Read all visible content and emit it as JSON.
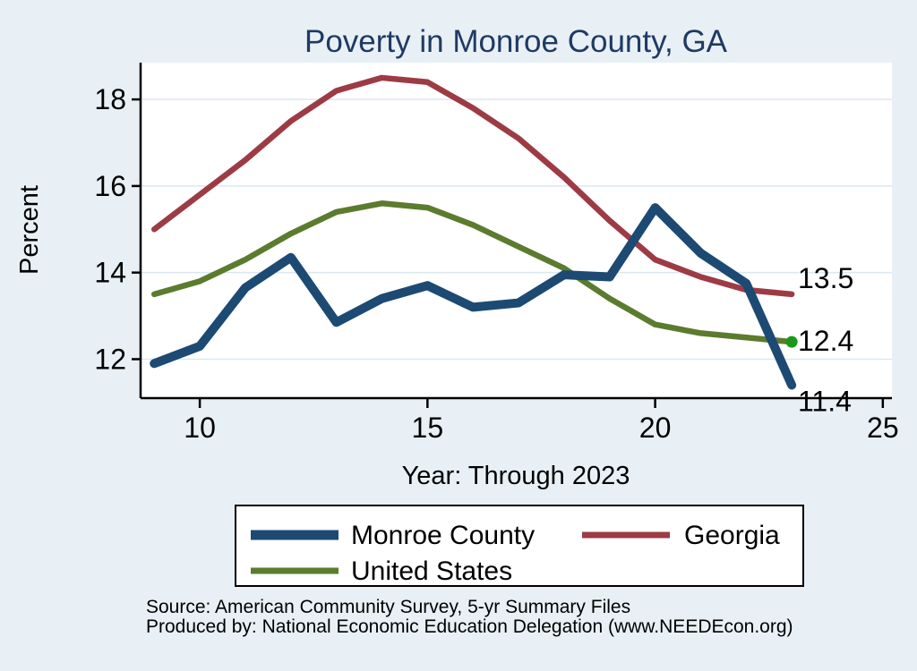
{
  "title": "Poverty in Monroe County, GA",
  "colors": {
    "background": "#e8f0f5",
    "plot_background": "#ffffff",
    "gridline": "#dbe8f1",
    "axis": "#000000",
    "title_text": "#1f3a63",
    "monroe_blue": "#1c4a73",
    "georgia_maroon": "#9d3b44",
    "us_olive": "#5b7c2e",
    "end_marker_green": "#189a18"
  },
  "y_axis": {
    "label": "Percent",
    "ticks": [
      12,
      14,
      16,
      18
    ]
  },
  "x_axis": {
    "label": "Year: Through 2023",
    "ticks": [
      10,
      15,
      20,
      25
    ]
  },
  "legend": {
    "items": [
      {
        "label": "Monroe County",
        "color": "#1c4a73"
      },
      {
        "label": "Georgia",
        "color": "#9d3b44"
      },
      {
        "label": "United States",
        "color": "#5b7c2e"
      }
    ]
  },
  "footer": {
    "source": "Source: American Community Survey, 5-yr Summary Files",
    "produced_by": "Produced by: National Economic Education Delegation (www.NEEDEcon.org)"
  },
  "chart_data": {
    "type": "line",
    "title": "Poverty in Monroe County, GA",
    "xlabel": "Year: Through 2023",
    "ylabel": "Percent",
    "x": [
      9,
      10,
      11,
      12,
      13,
      14,
      15,
      16,
      17,
      18,
      19,
      20,
      21,
      22,
      23
    ],
    "xlim": [
      8.7,
      25.2
    ],
    "ylim": [
      11.1,
      18.85
    ],
    "grid": "horizontal",
    "legend_position": "bottom",
    "series": [
      {
        "key": "georgia",
        "name": "Georgia",
        "color": "#9d3b44",
        "line_width": 6.5,
        "values": [
          15.0,
          15.8,
          16.6,
          17.5,
          18.2,
          18.5,
          18.4,
          17.8,
          17.1,
          16.2,
          15.2,
          14.3,
          13.9,
          13.6,
          13.5
        ],
        "end_label": "13.5",
        "end_marker": false
      },
      {
        "key": "united-states",
        "name": "United States",
        "color": "#5b7c2e",
        "line_width": 6.5,
        "values": [
          13.5,
          13.8,
          14.3,
          14.9,
          15.4,
          15.6,
          15.5,
          15.1,
          14.6,
          14.1,
          13.4,
          12.8,
          12.6,
          12.5,
          12.4
        ],
        "end_label": "12.4",
        "end_marker": true,
        "end_marker_color": "#189a18"
      },
      {
        "key": "monroe-county",
        "name": "Monroe County",
        "color": "#1c4a73",
        "line_width": 10,
        "values": [
          11.9,
          12.3,
          13.65,
          14.35,
          12.85,
          13.4,
          13.7,
          13.2,
          13.3,
          13.95,
          13.9,
          15.5,
          14.45,
          13.75,
          11.4
        ],
        "end_label": "11.4",
        "end_marker": false
      }
    ]
  }
}
